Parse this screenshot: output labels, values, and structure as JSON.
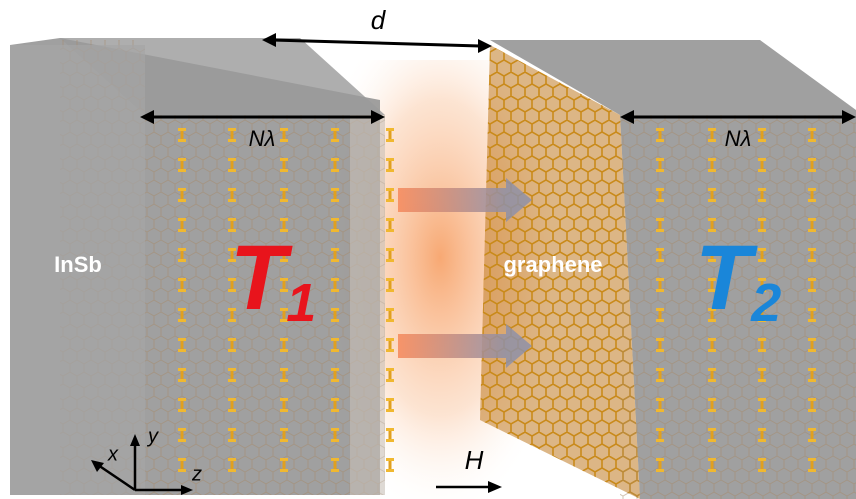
{
  "labels": {
    "gap": "d",
    "left_period": "Nλ",
    "right_period": "Nλ",
    "left_material": "InSb",
    "right_material": "graphene",
    "left_temperature": {
      "letter": "T",
      "subscript": "1"
    },
    "right_temperature": {
      "letter": "T",
      "subscript": "2"
    },
    "axes": {
      "x": "x",
      "y": "y",
      "z": "z"
    },
    "field": "H"
  }
}
